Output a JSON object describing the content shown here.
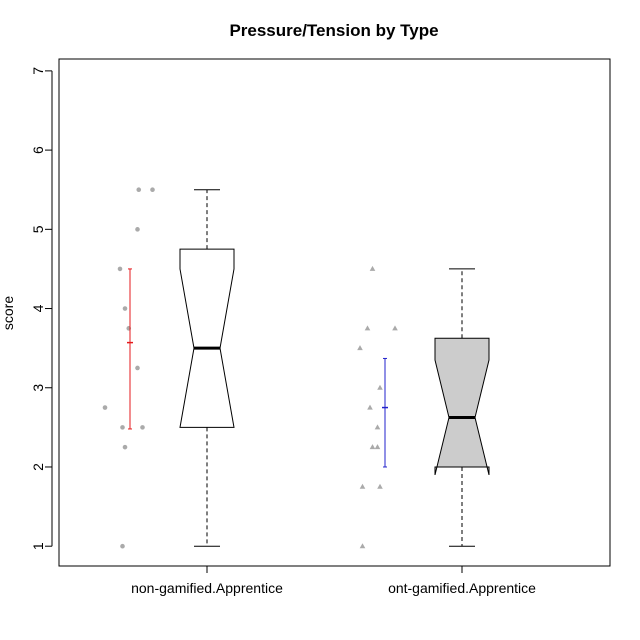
{
  "chart_data": {
    "type": "boxplot",
    "title": "Pressure/Tension by Type",
    "xlabel": "",
    "ylabel": "score",
    "ylim": [
      0.75,
      7.15
    ],
    "yticks": [
      1,
      2,
      3,
      4,
      5,
      6,
      7
    ],
    "grid": false,
    "groups": [
      {
        "label": "non-gamified.Apprentice",
        "box": {
          "min": 1.0,
          "q1": 2.5,
          "median": 3.5,
          "q3": 4.75,
          "max": 5.5,
          "notch_low": 2.5,
          "notch_high": 4.5
        },
        "fill": "#ffffff",
        "mean": 3.57,
        "error_low": 2.48,
        "error_high": 4.5,
        "error_color": "#e41a1c",
        "point_marker": "circle",
        "points": [
          {
            "x": -0.1,
            "y": 2.75
          },
          {
            "x": -0.03,
            "y": 1.0
          },
          {
            "x": -0.02,
            "y": 2.25
          },
          {
            "x": -0.03,
            "y": 2.5
          },
          {
            "x": 0.05,
            "y": 2.5
          },
          {
            "x": 0.03,
            "y": 3.25
          },
          {
            "x": -0.005,
            "y": 3.75
          },
          {
            "x": -0.02,
            "y": 4.0
          },
          {
            "x": -0.04,
            "y": 4.5
          },
          {
            "x": 0.03,
            "y": 5.0
          },
          {
            "x": 0.035,
            "y": 5.5
          },
          {
            "x": 0.09,
            "y": 5.5
          }
        ]
      },
      {
        "label": "ont-gamified.Apprentice",
        "box": {
          "min": 1.0,
          "q1": 2.0,
          "median": 2.625,
          "q3": 3.625,
          "max": 4.5,
          "notch_low": 1.9,
          "notch_high": 3.35
        },
        "fill": "#cccccc",
        "mean": 2.75,
        "error_low": 2.0,
        "error_high": 3.37,
        "error_color": "#2222cc",
        "point_marker": "triangle",
        "points": [
          {
            "x": -0.09,
            "y": 1.0
          },
          {
            "x": -0.09,
            "y": 1.75
          },
          {
            "x": -0.02,
            "y": 1.75
          },
          {
            "x": -0.05,
            "y": 2.25
          },
          {
            "x": -0.03,
            "y": 2.25
          },
          {
            "x": -0.03,
            "y": 2.5
          },
          {
            "x": -0.06,
            "y": 2.75
          },
          {
            "x": -0.02,
            "y": 3.0
          },
          {
            "x": -0.1,
            "y": 3.5
          },
          {
            "x": -0.07,
            "y": 3.75
          },
          {
            "x": 0.04,
            "y": 3.75
          },
          {
            "x": -0.05,
            "y": 4.5
          }
        ]
      }
    ]
  }
}
